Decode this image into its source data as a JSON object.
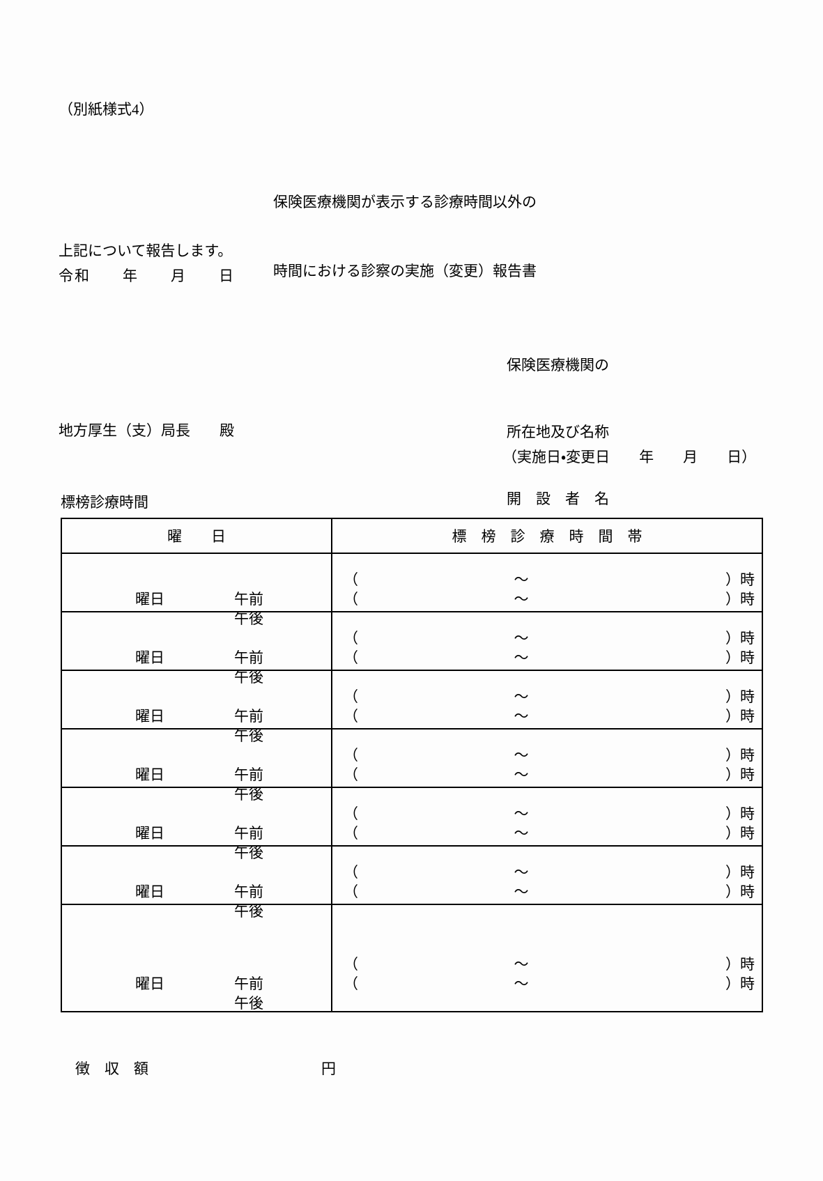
{
  "doc": {
    "form_number": "（別紙様式4）",
    "title": [
      "保険医療機関が表示する診療時間以外の",
      "時間における診察の実施（変更）報告書"
    ],
    "statement": "上記について報告します。",
    "era_date_line": "令和　　年　　月　　日",
    "org_block": {
      "line1": "保険医療機関の",
      "line2": "所在地及び名称",
      "line3": "開　設　者　名"
    },
    "addressee": "地方厚生（支）局長　　殿",
    "implementation_date_line": "（実施日・変更日　　年　　月　　日）",
    "table_caption": "標榜診療時間",
    "fee": {
      "label": "徴　収　額",
      "unit": "円"
    }
  },
  "table": {
    "header": {
      "day_column": "曜　　日",
      "hours_column": "標　榜　診　療　時　間　帯"
    },
    "rows": [
      {
        "day_label": "曜日",
        "am_label": "午前",
        "pm_label": "午後",
        "open_paren": "（",
        "tilde": "〜",
        "close_hour": "）時"
      },
      {
        "day_label": "曜日",
        "am_label": "午前",
        "pm_label": "午後",
        "open_paren": "（",
        "tilde": "〜",
        "close_hour": "）時"
      },
      {
        "day_label": "曜日",
        "am_label": "午前",
        "pm_label": "午後",
        "open_paren": "（",
        "tilde": "〜",
        "close_hour": "）時"
      },
      {
        "day_label": "曜日",
        "am_label": "午前",
        "pm_label": "午後",
        "open_paren": "（",
        "tilde": "〜",
        "close_hour": "）時"
      },
      {
        "day_label": "曜日",
        "am_label": "午前",
        "pm_label": "午後",
        "open_paren": "（",
        "tilde": "〜",
        "close_hour": "）時"
      },
      {
        "day_label": "曜日",
        "am_label": "午前",
        "pm_label": "午後",
        "open_paren": "（",
        "tilde": "〜",
        "close_hour": "）時"
      },
      {
        "day_label": "曜日",
        "am_label": "午前",
        "pm_label": "午後",
        "open_paren": "（",
        "tilde": "〜",
        "close_hour": "）時"
      }
    ]
  }
}
